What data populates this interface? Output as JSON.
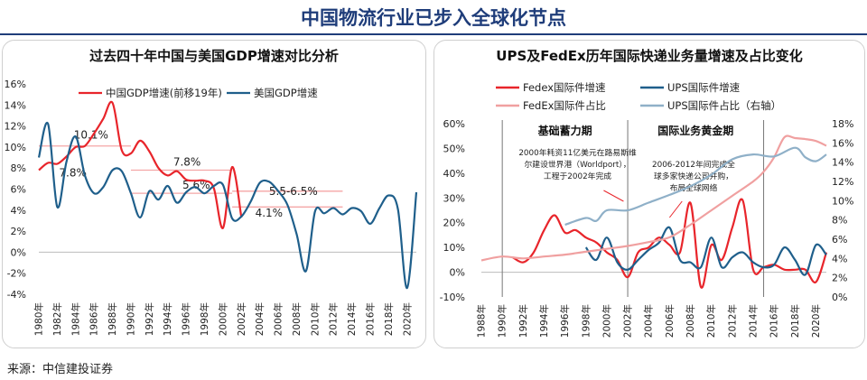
{
  "page": {
    "title": "中国物流行业已步入全球化节点",
    "source": "来源：中信建投证券"
  },
  "colors": {
    "title_blue": "#1f3d7a",
    "red": "#e8252b",
    "blue": "#1f5f8b",
    "pink": "#f0a0a0",
    "light_blue": "#8fb0c8",
    "ref_line": "#f4a6a6"
  },
  "chart_data": [
    {
      "type": "line",
      "title": "过去四十年中国与美国GDP增速对比分析",
      "xlabel": "",
      "ylabel": "",
      "x_ticks": [
        "1980年",
        "1982年",
        "1984年",
        "1986年",
        "1988年",
        "1990年",
        "1992年",
        "1994年",
        "1996年",
        "1998年",
        "2000年",
        "2002年",
        "2004年",
        "2006年",
        "2008年",
        "2010年",
        "2012年",
        "2014年",
        "2016年",
        "2018年",
        "2020年"
      ],
      "y_ticks": [
        "-4%",
        "-2%",
        "0%",
        "2%",
        "4%",
        "6%",
        "8%",
        "10%",
        "12%",
        "14%",
        "16%"
      ],
      "xlim": [
        1980,
        2021
      ],
      "ylim": [
        -4,
        16
      ],
      "legend_position": "top",
      "series": [
        {
          "name": "中国GDP增速(前移19年)",
          "color": "#e8252b",
          "x": [
            1980,
            1981,
            1982,
            1983,
            1984,
            1985,
            1986,
            1987,
            1988,
            1989,
            1990,
            1991,
            1992,
            1993,
            1994,
            1995,
            1996,
            1997,
            1998,
            1999,
            2000,
            2001,
            2002
          ],
          "values": [
            7.8,
            8.5,
            8.4,
            9.1,
            10.0,
            10.1,
            11.3,
            12.7,
            14.2,
            9.7,
            9.4,
            10.6,
            9.6,
            8.0,
            7.3,
            7.7,
            6.9,
            6.8,
            6.8,
            6.1,
            2.3,
            8.1,
            3.3
          ]
        },
        {
          "name": "美国GDP增速",
          "color": "#1f5f8b",
          "x": [
            1980,
            1981,
            1982,
            1983,
            1984,
            1985,
            1986,
            1987,
            1988,
            1989,
            1990,
            1991,
            1992,
            1993,
            1994,
            1995,
            1996,
            1997,
            1998,
            1999,
            2000,
            2001,
            2002,
            2003,
            2004,
            2005,
            2006,
            2007,
            2008,
            2009,
            2010,
            2011,
            2012,
            2013,
            2014,
            2015,
            2016,
            2017,
            2018,
            2019,
            2020,
            2021
          ],
          "values": [
            9.0,
            12.2,
            4.3,
            8.6,
            11.0,
            7.3,
            5.6,
            6.2,
            7.8,
            7.7,
            5.6,
            3.3,
            5.8,
            5.0,
            6.3,
            4.7,
            5.7,
            6.2,
            5.6,
            6.3,
            6.4,
            3.2,
            3.4,
            4.8,
            6.6,
            6.7,
            5.8,
            4.5,
            1.7,
            -1.8,
            3.9,
            3.7,
            4.2,
            3.6,
            4.2,
            3.9,
            2.7,
            4.2,
            5.4,
            4.1,
            -3.4,
            5.7
          ]
        }
      ],
      "reference_lines": [
        {
          "y": 10.1,
          "x_range": [
            1980,
            1990
          ],
          "label": "10.1%"
        },
        {
          "y": 7.8,
          "x_range": [
            1990,
            2001
          ],
          "label": "7.8%"
        },
        {
          "y": 5.6,
          "x_range": [
            1990,
            2001
          ],
          "label": "5.6%"
        },
        {
          "y": 5.8,
          "x_range": [
            2001,
            2013
          ],
          "label": "5.5-6.5%"
        },
        {
          "y": 4.3,
          "x_range": [
            2001,
            2013
          ],
          "label": ""
        }
      ],
      "annotations": [
        {
          "text": "7.8%",
          "x": 1982.2,
          "y": 7.2
        },
        {
          "text": "4.1%",
          "x": 2003.5,
          "y": 3.4
        }
      ]
    },
    {
      "type": "line",
      "title": "UPS及FedEx历年国际快递业务量增速及占比变化",
      "xlabel": "",
      "ylabel": "",
      "x_ticks": [
        "1988年",
        "1990年",
        "1992年",
        "1994年",
        "1996年",
        "1998年",
        "2000年",
        "2002年",
        "2004年",
        "2006年",
        "2008年",
        "2010年",
        "2012年",
        "2014年",
        "2016年",
        "2018年",
        "2020年"
      ],
      "y_left_ticks": [
        "-10%",
        "0%",
        "10%",
        "20%",
        "30%",
        "40%",
        "50%",
        "60%"
      ],
      "y_right_ticks": [
        "0%",
        "2%",
        "4%",
        "6%",
        "8%",
        "10%",
        "12%",
        "14%",
        "16%",
        "18%"
      ],
      "xlim": [
        1988,
        2021
      ],
      "ylim_left": [
        -10,
        60
      ],
      "ylim_right": [
        0,
        18
      ],
      "legend_position": "top",
      "series": [
        {
          "name": "Fedex国际件增速",
          "axis": "left",
          "color": "#e8252b",
          "x": [
            1991,
            1992,
            1993,
            1994,
            1995,
            1996,
            1997,
            1998,
            1999,
            2000,
            2001,
            2002,
            2003,
            2004,
            2005,
            2006,
            2007,
            2008,
            2009,
            2010,
            2011,
            2012,
            2013,
            2014,
            2015,
            2016,
            2017,
            2018,
            2019,
            2020,
            2021
          ],
          "values": [
            6,
            4,
            8,
            17,
            23,
            16,
            17,
            14,
            12,
            8,
            5,
            -2,
            8,
            10,
            14,
            11,
            8,
            28,
            -6,
            11,
            5,
            18,
            29,
            1,
            2,
            3,
            1,
            1,
            1,
            -4,
            8
          ]
        },
        {
          "name": "UPS国际件增速",
          "axis": "left",
          "color": "#1f5f8b",
          "x": [
            1998,
            1999,
            2000,
            2001,
            2002,
            2003,
            2004,
            2005,
            2006,
            2007,
            2008,
            2009,
            2010,
            2011,
            2012,
            2013,
            2014,
            2015,
            2016,
            2017,
            2018,
            2019,
            2020,
            2021
          ],
          "values": [
            10,
            5,
            14,
            4,
            1,
            5,
            9,
            12,
            18,
            5,
            4,
            2,
            14,
            2,
            6,
            8,
            4,
            2,
            3,
            10,
            5,
            -1,
            11,
            7
          ]
        },
        {
          "name": "FedEx国际件占比",
          "axis": "right",
          "color": "#f0a0a0",
          "x": [
            1988,
            1990,
            1992,
            1994,
            1996,
            1998,
            2000,
            2002,
            2004,
            2006,
            2008,
            2010,
            2012,
            2014,
            2015,
            2016,
            2017,
            2018,
            2019,
            2020,
            2021
          ],
          "values": [
            3.8,
            4.2,
            4.0,
            4.2,
            4.4,
            4.7,
            5.0,
            5.3,
            5.7,
            6.2,
            7.5,
            9.0,
            10.5,
            12.0,
            13.0,
            14.5,
            16.6,
            16.5,
            16.4,
            16.2,
            15.7
          ]
        },
        {
          "name": "UPS国际件占比（右轴）",
          "axis": "right",
          "color": "#8fb0c8",
          "x": [
            1996,
            1998,
            1999,
            2000,
            2002,
            2004,
            2006,
            2008,
            2010,
            2012,
            2014,
            2016,
            2018,
            2019,
            2020,
            2021
          ],
          "values": [
            7.5,
            8.2,
            7.9,
            9.0,
            9.0,
            9.8,
            10.6,
            11.5,
            12.7,
            14.3,
            14.8,
            14.6,
            15.5,
            14.5,
            14.1,
            14.8
          ]
        }
      ],
      "period_lines_x": [
        1990,
        2002,
        2015
      ],
      "period_labels": [
        {
          "text": "基础蓄力期",
          "x": 1996
        },
        {
          "text": "国际业务黄金期",
          "x": 2008.5
        }
      ],
      "annotations": [
        {
          "lines": [
            "2000年耗资11亿美元在路易斯维",
            "尔建设世界港（Worldport），",
            "工程于2002年完成"
          ]
        },
        {
          "lines": [
            "2006-2012年间完成全",
            "球多家快递公司并购，",
            "布局全球网络"
          ]
        }
      ]
    }
  ]
}
